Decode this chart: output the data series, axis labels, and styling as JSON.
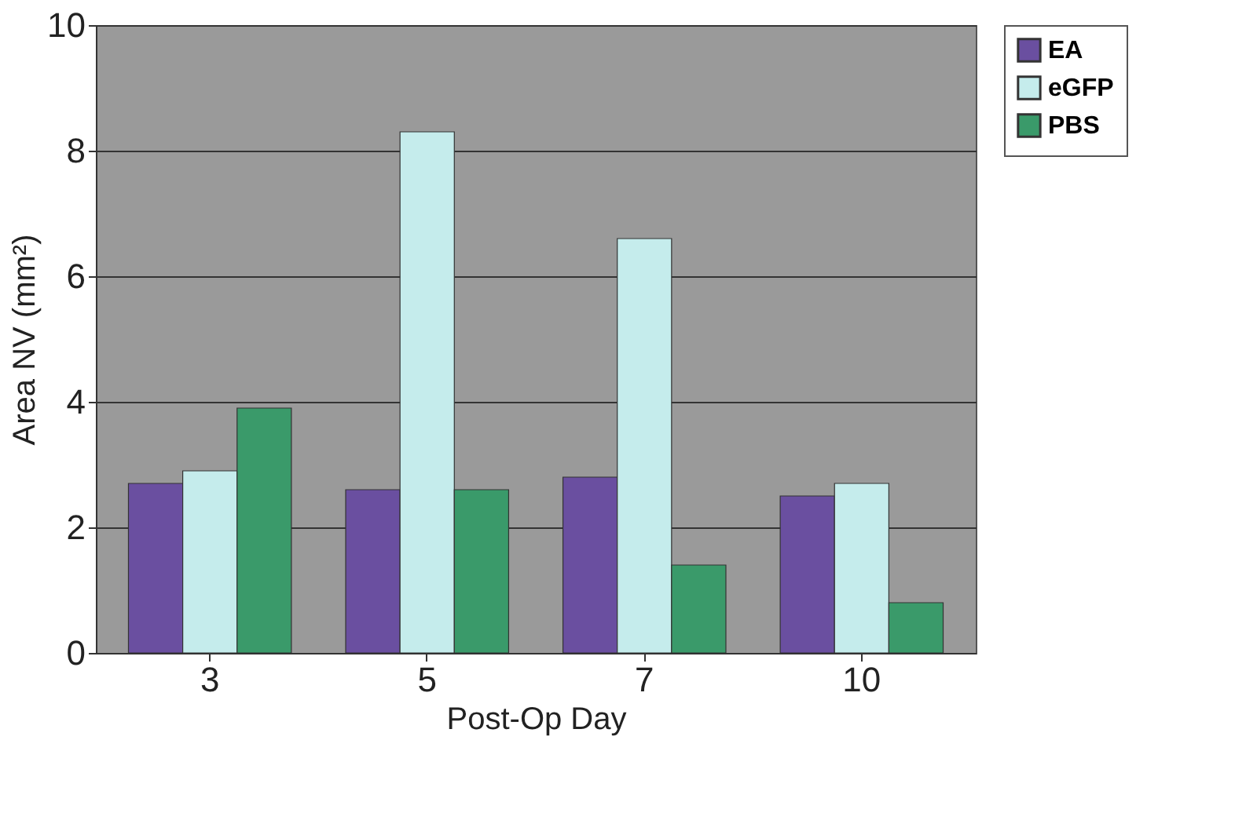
{
  "chart_data": {
    "type": "bar",
    "xlabel": "Post-Op Day",
    "ylabel": "Area NV (mm²)",
    "categories": [
      "3",
      "5",
      "7",
      "10"
    ],
    "series": [
      {
        "name": "EA",
        "color": "#6a4fa0",
        "values": [
          2.7,
          2.6,
          2.8,
          2.5
        ]
      },
      {
        "name": "eGFP",
        "color": "#c5ecec",
        "values": [
          2.9,
          8.3,
          6.6,
          2.7
        ]
      },
      {
        "name": "PBS",
        "color": "#3a9a6a",
        "values": [
          3.9,
          2.6,
          1.4,
          0.8
        ]
      }
    ],
    "ylim": [
      0,
      10
    ],
    "yticks": [
      0,
      2,
      4,
      6,
      8,
      10
    ],
    "grid": "y",
    "legend": "right"
  }
}
